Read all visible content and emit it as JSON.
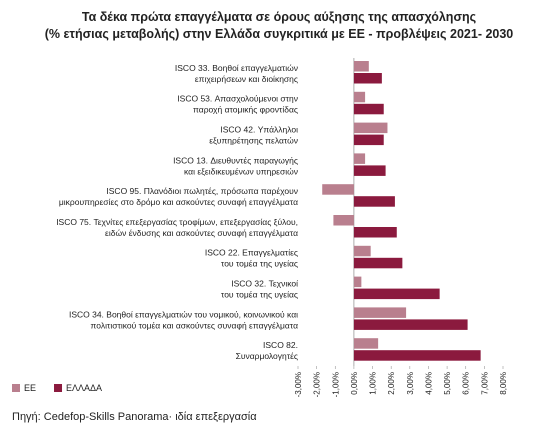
{
  "chart_data": {
    "type": "bar",
    "orientation": "horizontal",
    "title": "Τα δέκα πρώτα επαγγέλματα σε όρους αύξησης της απασχόλησης",
    "subtitle": "(% ετήσιας μεταβολής) στην Ελλάδα συγκριτικά με ΕΕ - προβλέψεις 2021- 2030",
    "categories": [
      "ISCO 33. Βοηθοί επαγγελματιών\nεπιχειρήσεων και διοίκησης",
      "ISCO 53. Απασχολούμενοι στην\nπαροχή ατομικής φροντίδας",
      "ISCO 42. Υπάλληλοι\nεξυπηρέτησης πελατών",
      "ISCO 13. Διευθυντές παραγωγής\nκαι εξειδικευμένων υπηρεσιών",
      "ISCO 95. Πλανόδιοι πωλητές, πρόσωπα παρέχουν\nμικρουπηρεσίες στο δρόμο και ασκούντες συναφή επαγγέλματα",
      "ISCO 75. Τεχνίτες επεξεργασίας τροφίμων, επεξεργασίας ξύλου,\nειδών ένδυσης και ασκούντες συναφή επαγγέλματα",
      "ISCO 22. Επαγγελματίες\nτου τομέα της υγείας",
      "ISCO 32. Τεχνικοί\nτου τομέα της υγείας",
      "ISCO 34. Βοηθοί επαγγελματιών του νομικού, κοινωνικού και\nπολιτιστικού τομέα και ασκούντες συναφή επαγγέλματα",
      "ISCO 82.\nΣυναρμολογητές"
    ],
    "series": [
      {
        "name": "ΕΕ",
        "color": "#b97f8e",
        "values": [
          0.8,
          0.6,
          1.8,
          0.6,
          -1.7,
          -1.1,
          0.9,
          0.4,
          2.8,
          1.3
        ]
      },
      {
        "name": "ΕΛΛΑΔΑ",
        "color": "#8b1a3e",
        "values": [
          1.5,
          1.6,
          1.6,
          1.7,
          2.2,
          2.3,
          2.6,
          4.6,
          6.1,
          6.8
        ]
      }
    ],
    "xlim": [
      -3,
      8
    ],
    "xticks": [
      {
        "value": -3,
        "label": "-3,00%"
      },
      {
        "value": -2,
        "label": "-2,00%"
      },
      {
        "value": -1,
        "label": "-1,00%"
      },
      {
        "value": 0,
        "label": "0,00%"
      },
      {
        "value": 1,
        "label": "1,00%"
      },
      {
        "value": 2,
        "label": "2,00%"
      },
      {
        "value": 3,
        "label": "3,00%"
      },
      {
        "value": 4,
        "label": "4,00%"
      },
      {
        "value": 5,
        "label": "5,00%"
      },
      {
        "value": 6,
        "label": "6,00%"
      },
      {
        "value": 7,
        "label": "7,00%"
      },
      {
        "value": 8,
        "label": "8,00%"
      }
    ],
    "grid": false,
    "legend": "bottom-left",
    "source": "Πηγή: Cedefop-Skills Panorama· ιδία επεξεργασία"
  }
}
